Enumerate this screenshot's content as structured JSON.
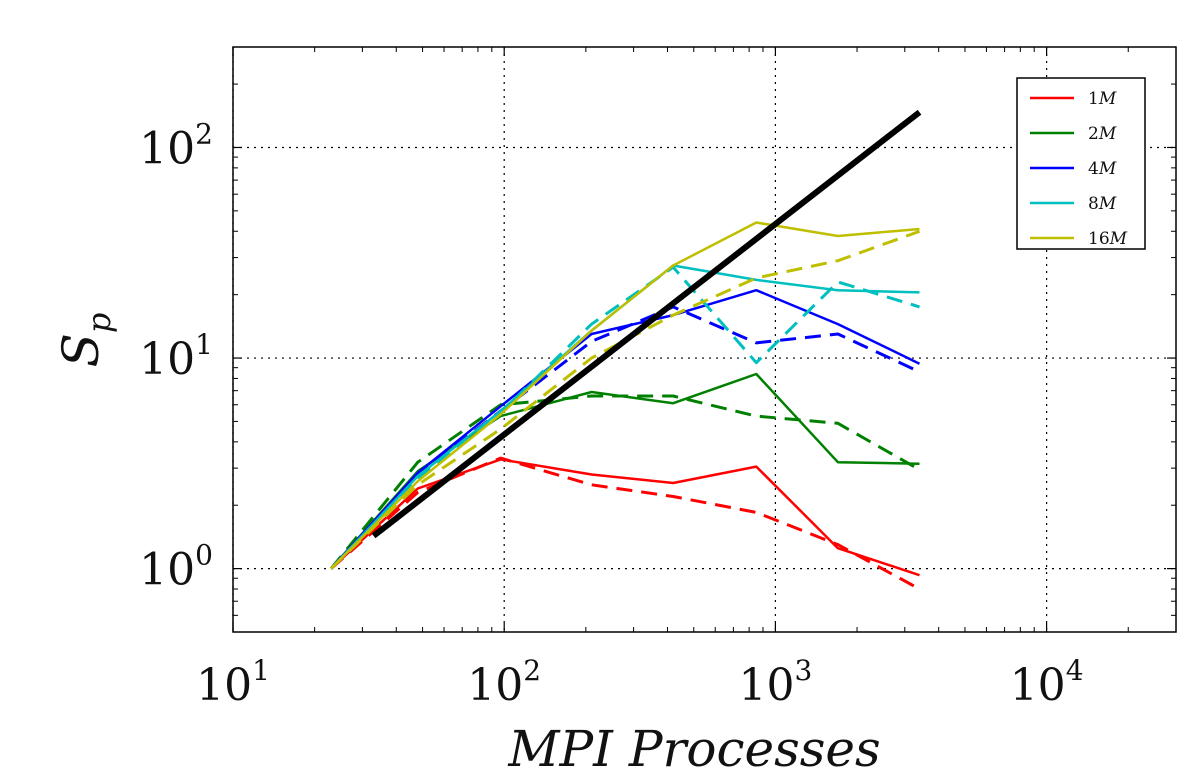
{
  "chart_data": {
    "type": "line",
    "title": "",
    "x_scale": "log",
    "y_scale": "log",
    "xlim": [
      10,
      30000
    ],
    "ylim": [
      0.5,
      300
    ],
    "xlabel": {
      "base": "MPI Processes",
      "sub": ""
    },
    "ylabel": {
      "base": "S",
      "sub": "p"
    },
    "grid": true,
    "grid_style": "dotted",
    "legend_position": "top-right",
    "x_ticks": [
      {
        "base": "10",
        "exp": "1",
        "value": 10
      },
      {
        "base": "10",
        "exp": "2",
        "value": 100
      },
      {
        "base": "10",
        "exp": "3",
        "value": 1000
      },
      {
        "base": "10",
        "exp": "4",
        "value": 10000
      }
    ],
    "y_ticks": [
      {
        "base": "10",
        "exp": "0",
        "value": 1
      },
      {
        "base": "10",
        "exp": "1",
        "value": 10
      },
      {
        "base": "10",
        "exp": "2",
        "value": 100
      }
    ],
    "ideal": {
      "color": "#000000",
      "x": [
        33,
        3400
      ],
      "y": [
        1.43,
        147
      ]
    },
    "series": [
      {
        "name": "1",
        "name_suffix": "M",
        "color": "#ff0000",
        "solid": {
          "x": [
            23,
            48,
            97,
            210,
            420,
            850,
            1700,
            3400
          ],
          "y": [
            1.0,
            2.4,
            3.3,
            2.8,
            2.55,
            3.05,
            1.25,
            0.93
          ]
        },
        "dashed": {
          "x": [
            23,
            48,
            97,
            210,
            420,
            850,
            1700,
            3400
          ],
          "y": [
            1.0,
            2.3,
            3.35,
            2.5,
            2.2,
            1.85,
            1.3,
            0.8
          ]
        }
      },
      {
        "name": "2",
        "name_suffix": "M",
        "color": "#008000",
        "solid": {
          "x": [
            23,
            48,
            97,
            210,
            420,
            850,
            1700,
            3400
          ],
          "y": [
            1.0,
            2.9,
            5.3,
            6.9,
            6.1,
            8.4,
            3.2,
            3.15
          ]
        },
        "dashed": {
          "x": [
            23,
            48,
            97,
            210,
            420,
            850,
            1700,
            3400
          ],
          "y": [
            1.0,
            3.2,
            6.0,
            6.6,
            6.6,
            5.3,
            4.9,
            2.95
          ]
        }
      },
      {
        "name": "4",
        "name_suffix": "M",
        "color": "#0000ff",
        "solid": {
          "x": [
            23,
            48,
            97,
            210,
            420,
            850,
            1700,
            3400
          ],
          "y": [
            1.0,
            2.85,
            5.9,
            13.0,
            16.0,
            21.0,
            14.5,
            9.4
          ]
        },
        "dashed": {
          "x": [
            23,
            48,
            97,
            210,
            420,
            850,
            1700,
            3400
          ],
          "y": [
            1.0,
            2.8,
            5.6,
            12.0,
            17.5,
            11.8,
            13.0,
            8.6
          ]
        }
      },
      {
        "name": "8",
        "name_suffix": "M",
        "color": "#00bfbf",
        "solid": {
          "x": [
            23,
            48,
            97,
            210,
            420,
            850,
            1700,
            3400
          ],
          "y": [
            1.0,
            2.75,
            5.6,
            13.5,
            27.5,
            23.5,
            21.0,
            20.5
          ]
        },
        "dashed": {
          "x": [
            23,
            48,
            97,
            210,
            420,
            850,
            1700,
            3400
          ],
          "y": [
            1.0,
            2.7,
            5.5,
            14.5,
            27.0,
            9.5,
            23.0,
            17.5
          ]
        }
      },
      {
        "name": "16",
        "name_suffix": "M",
        "color": "#bfbf00",
        "solid": {
          "x": [
            23,
            48,
            97,
            210,
            420,
            850,
            1700,
            3400
          ],
          "y": [
            1.0,
            2.6,
            5.4,
            13.5,
            27.5,
            44.0,
            38.0,
            41.0
          ]
        },
        "dashed": {
          "x": [
            23,
            48,
            97,
            210,
            420,
            850,
            1700,
            3400
          ],
          "y": [
            1.0,
            2.5,
            4.6,
            10.0,
            16.0,
            24.0,
            29.0,
            40.0
          ]
        }
      }
    ]
  }
}
